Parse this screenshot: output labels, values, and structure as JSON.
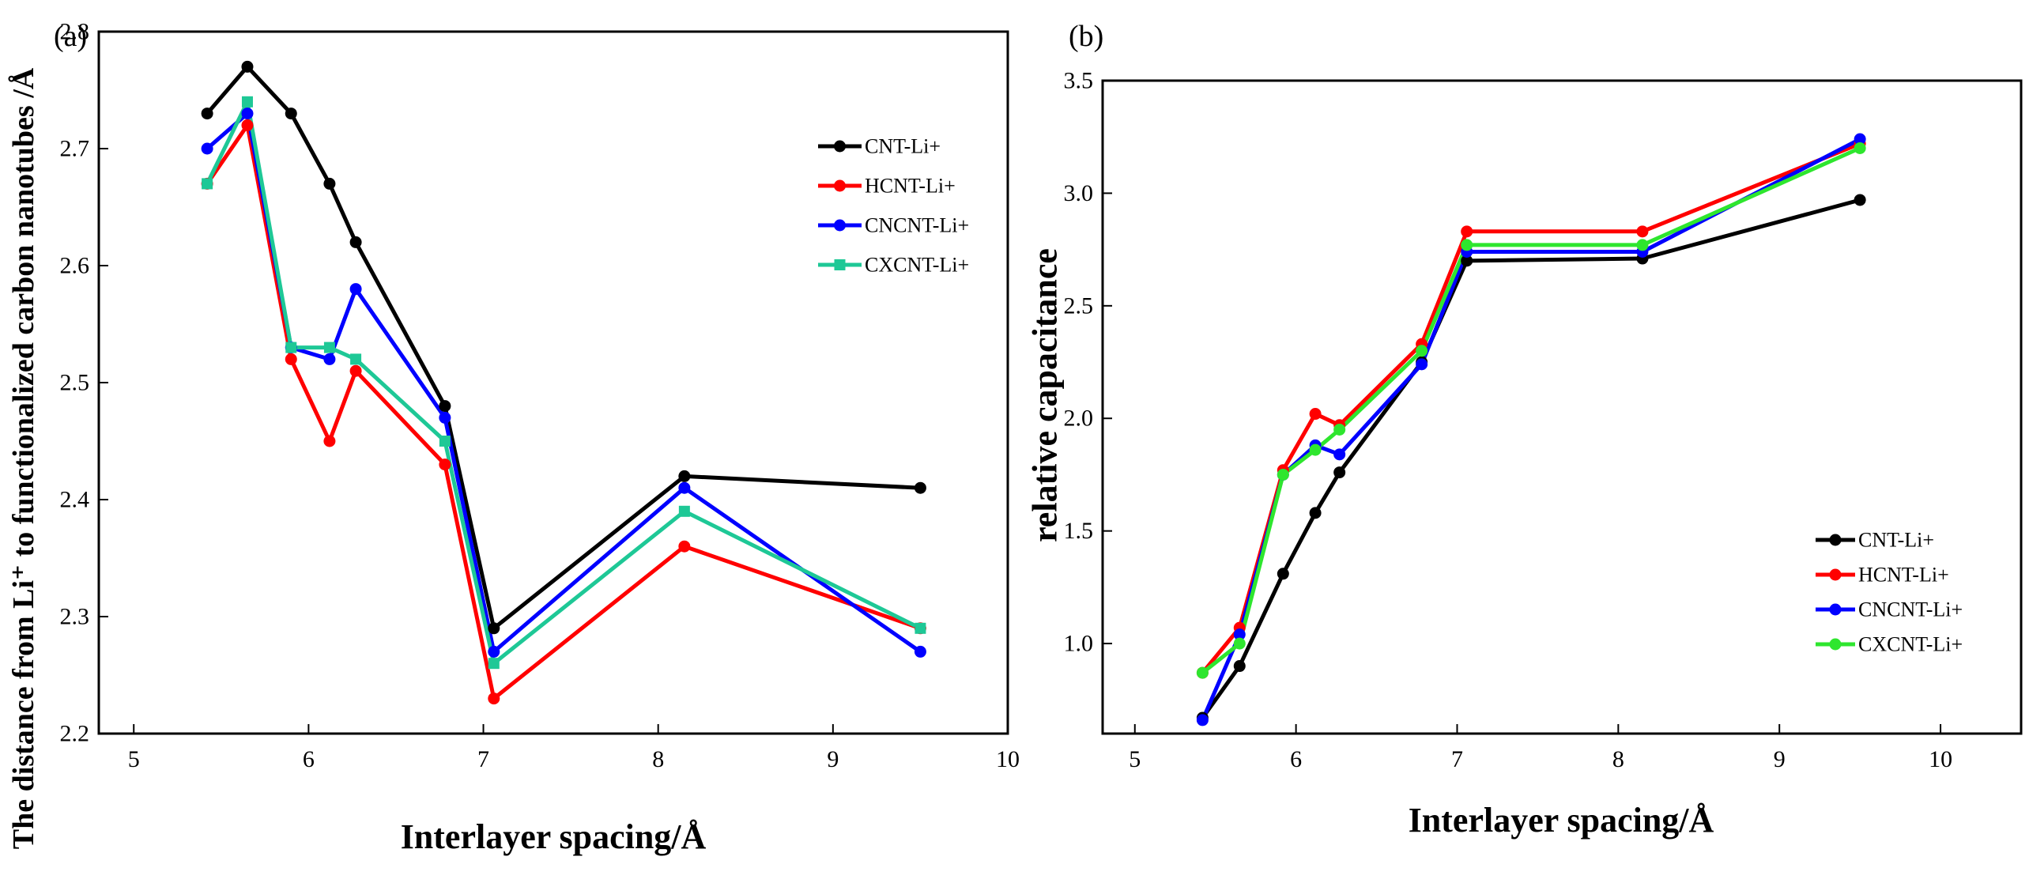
{
  "chart_data": [
    {
      "type": "line",
      "panel_label": "(a)",
      "xlabel": "Interlayer spacing/Å",
      "ylabel": "The distance from Li⁺ to functionalized carbon nanotubes /Å",
      "xlim": [
        4.8,
        10
      ],
      "ylim": [
        2.2,
        2.8
      ],
      "xticks": [
        5,
        6,
        7,
        8,
        9,
        10
      ],
      "yticks": [
        2.2,
        2.3,
        2.4,
        2.5,
        2.6,
        2.7,
        2.8
      ],
      "xtick_labels": [
        "5",
        "6",
        "7",
        "8",
        "9",
        "10"
      ],
      "ytick_labels": [
        "2.2",
        "2.3",
        "2.4",
        "2.5",
        "2.6",
        "2.7",
        "2.8"
      ],
      "legend_position": "top-right",
      "series": [
        {
          "name": "CNT-Li+",
          "color": "#000000",
          "marker": "circle",
          "x": [
            5.42,
            5.65,
            5.9,
            6.12,
            6.27,
            6.78,
            7.06,
            8.15,
            9.5
          ],
          "y": [
            2.73,
            2.77,
            2.73,
            2.67,
            2.62,
            2.48,
            2.29,
            2.42,
            2.41
          ]
        },
        {
          "name": "HCNT-Li+",
          "color": "#ff0000",
          "marker": "circle",
          "x": [
            5.42,
            5.65,
            5.9,
            6.12,
            6.27,
            6.78,
            7.06,
            8.15,
            9.5
          ],
          "y": [
            2.67,
            2.72,
            2.52,
            2.45,
            2.51,
            2.43,
            2.23,
            2.36,
            2.29
          ]
        },
        {
          "name": "CNCNT-Li+",
          "color": "#0000ff",
          "marker": "circle",
          "x": [
            5.42,
            5.65,
            5.9,
            6.12,
            6.27,
            6.78,
            7.06,
            8.15,
            9.5
          ],
          "y": [
            2.7,
            2.73,
            2.53,
            2.52,
            2.58,
            2.47,
            2.27,
            2.41,
            2.27
          ]
        },
        {
          "name": "CXCNT-Li+",
          "color": "#1ec896",
          "marker": "square",
          "x": [
            5.42,
            5.65,
            5.9,
            6.12,
            6.27,
            6.78,
            7.06,
            8.15,
            9.5
          ],
          "y": [
            2.67,
            2.74,
            2.53,
            2.53,
            2.52,
            2.45,
            2.26,
            2.39,
            2.29
          ]
        }
      ]
    },
    {
      "type": "line",
      "panel_label": "(b)",
      "xlabel": "Interlayer spacing/Å",
      "ylabel": "relative capacitance",
      "xlim": [
        4.8,
        10.5
      ],
      "ylim": [
        0.6,
        3.5
      ],
      "xticks": [
        5,
        6,
        7,
        8,
        9,
        10
      ],
      "yticks": [
        1.0,
        1.5,
        2.0,
        2.5,
        3.0,
        3.5
      ],
      "xtick_labels": [
        "5",
        "6",
        "7",
        "8",
        "9",
        "10"
      ],
      "ytick_labels": [
        "1.0",
        "1.5",
        "2.0",
        "2.5",
        "3.0",
        "3.5"
      ],
      "legend_position": "bottom-right",
      "series": [
        {
          "name": "CNT-Li+",
          "color": "#000000",
          "marker": "circle",
          "x": [
            5.42,
            5.65,
            5.92,
            6.12,
            6.27,
            6.78,
            7.06,
            8.15,
            9.5
          ],
          "y": [
            0.67,
            0.9,
            1.31,
            1.58,
            1.76,
            2.25,
            2.7,
            2.71,
            2.97
          ]
        },
        {
          "name": "HCNT-Li+",
          "color": "#ff0000",
          "marker": "circle",
          "x": [
            5.42,
            5.65,
            5.92,
            6.12,
            6.27,
            6.78,
            7.06,
            8.15,
            9.5
          ],
          "y": [
            0.87,
            1.07,
            1.77,
            2.02,
            1.97,
            2.33,
            2.83,
            2.83,
            3.22
          ]
        },
        {
          "name": "CNCNT-Li+",
          "color": "#0000ff",
          "marker": "circle",
          "x": [
            5.42,
            5.65,
            5.92,
            6.12,
            6.27,
            6.78,
            7.06,
            8.15,
            9.5
          ],
          "y": [
            0.66,
            1.04,
            1.75,
            1.88,
            1.84,
            2.24,
            2.74,
            2.74,
            3.24
          ]
        },
        {
          "name": "CXCNT-Li+",
          "color": "#2ee62e",
          "marker": "circle",
          "x": [
            5.42,
            5.65,
            5.92,
            6.12,
            6.27,
            6.78,
            7.06,
            8.15,
            9.5
          ],
          "y": [
            0.87,
            1.0,
            1.75,
            1.86,
            1.95,
            2.3,
            2.77,
            2.77,
            3.2
          ]
        }
      ]
    }
  ]
}
